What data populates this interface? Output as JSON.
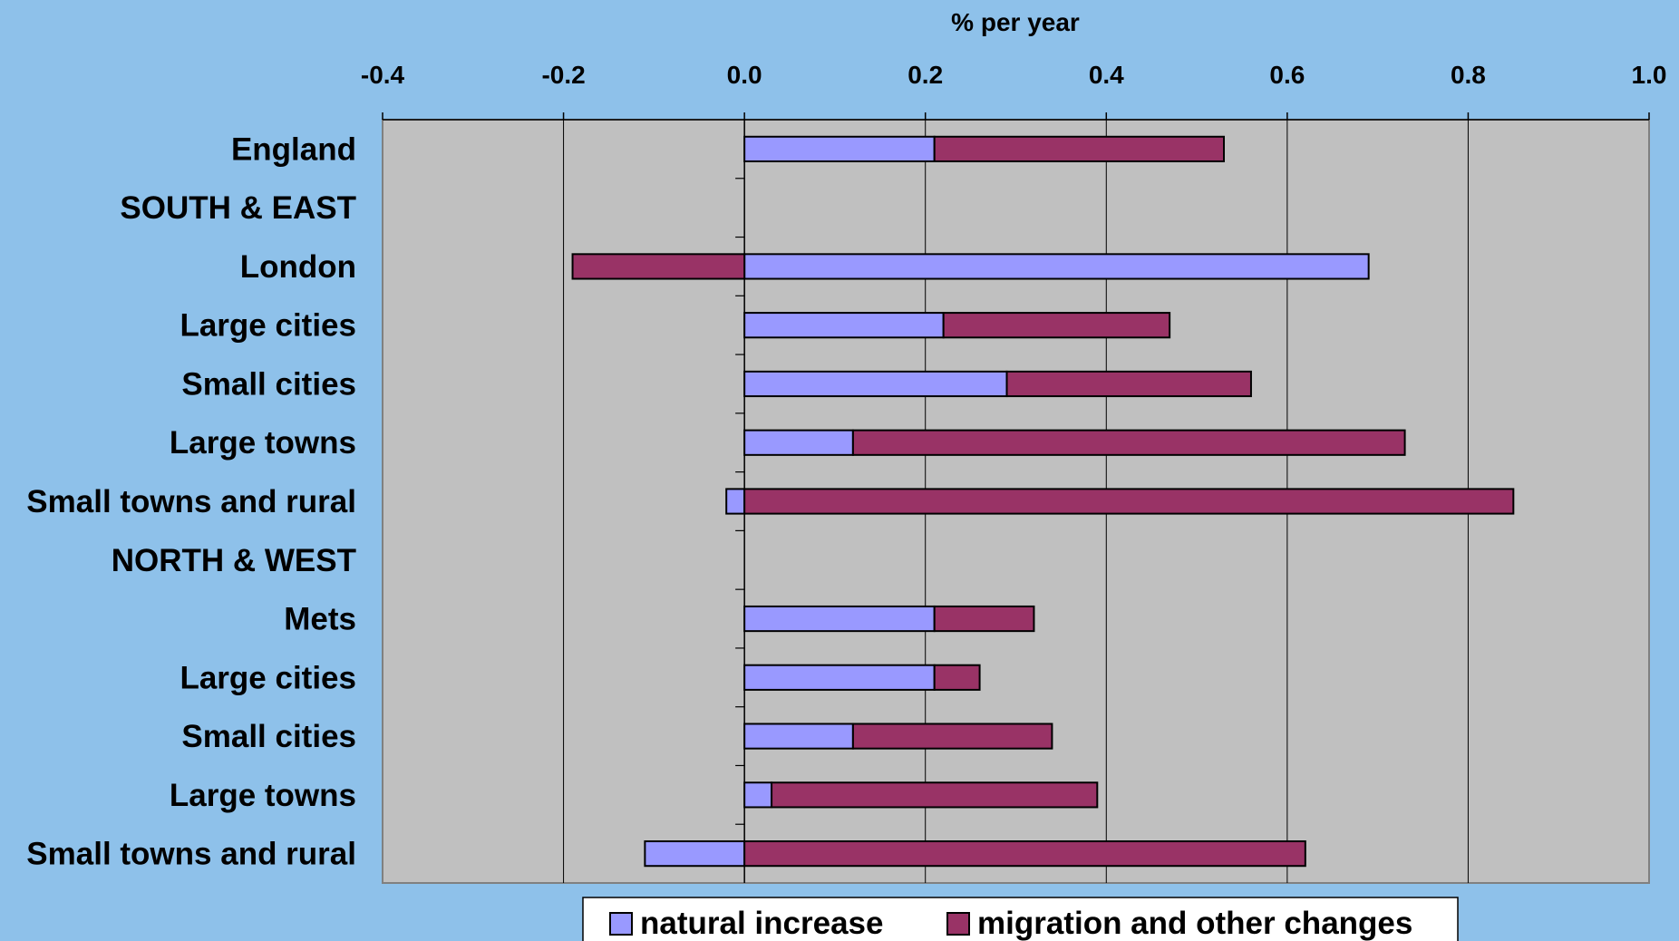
{
  "chart_data": {
    "type": "bar",
    "orientation": "horizontal",
    "stacked": true,
    "title": "",
    "xlabel": "% per year",
    "ylabel": "",
    "xlim": [
      -0.4,
      1.0
    ],
    "xticks": [
      -0.4,
      -0.2,
      0.0,
      0.2,
      0.4,
      0.6,
      0.8,
      1.0
    ],
    "xtick_labels": [
      "-0.4",
      "-0.2",
      "0.0",
      "0.2",
      "0.4",
      "0.6",
      "0.8",
      "1.0"
    ],
    "x_axis_position": "top",
    "grid": "vertical",
    "legend_position": "bottom",
    "categories": [
      "England",
      "SOUTH & EAST",
      "London",
      "Large cities",
      "Small cities",
      "Large towns",
      "Small towns and rural",
      "NORTH & WEST",
      "Mets",
      "Large cities",
      "Small cities",
      "Large towns",
      "Small towns and rural"
    ],
    "series": [
      {
        "name": "natural increase",
        "color": "#9999ff",
        "values": [
          0.21,
          null,
          0.69,
          0.22,
          0.29,
          0.12,
          -0.02,
          null,
          0.21,
          0.21,
          0.12,
          0.03,
          -0.11
        ]
      },
      {
        "name": "migration and other changes",
        "color": "#993366",
        "values": [
          0.32,
          null,
          -0.19,
          0.25,
          0.27,
          0.61,
          0.85,
          null,
          0.11,
          0.05,
          0.22,
          0.36,
          0.62
        ]
      }
    ]
  },
  "colors": {
    "page_background": "#8ec1ea",
    "plot_background": "#c0c0c0",
    "legend_background": "#ffffff"
  }
}
